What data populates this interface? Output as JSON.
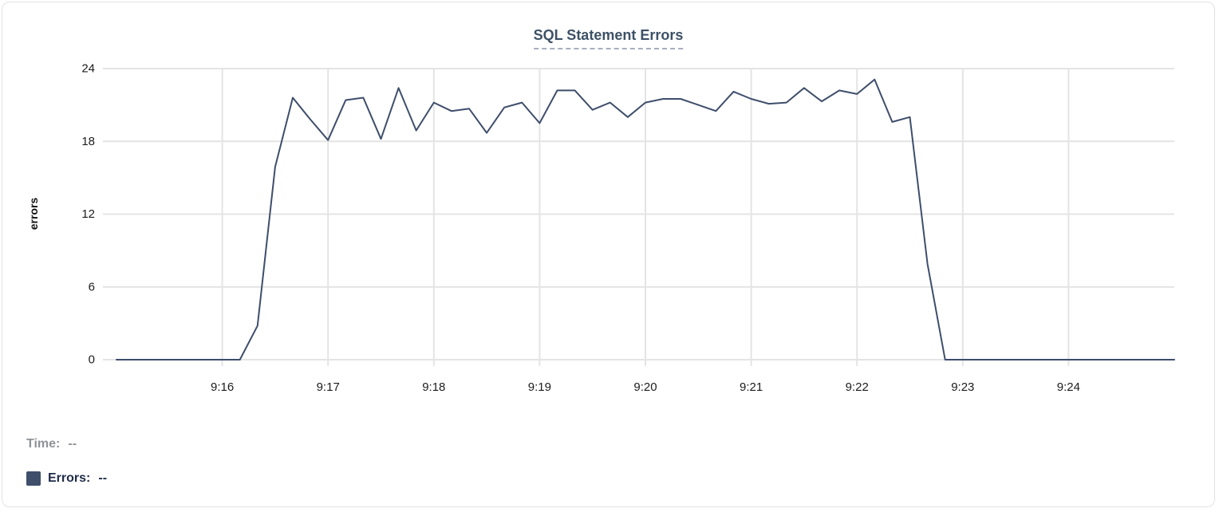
{
  "chart_data": {
    "type": "line",
    "title": "SQL Statement Errors",
    "ylabel": "errors",
    "series_name": "Errors",
    "x_start_time": "9:15:00",
    "interval_seconds": 10,
    "x_ticks": [
      "9:16",
      "9:17",
      "9:18",
      "9:19",
      "9:20",
      "9:21",
      "9:22",
      "9:23",
      "9:24"
    ],
    "y_ticks": [
      0,
      6,
      12,
      18,
      24
    ],
    "ylim": [
      0,
      24
    ],
    "grid": true,
    "legend_position": "bottom-left",
    "values": [
      0,
      0,
      0,
      0,
      0,
      0,
      0,
      0,
      2.8,
      15.9,
      21.6,
      19.8,
      18.1,
      21.4,
      21.6,
      18.2,
      22.4,
      18.9,
      21.2,
      20.5,
      20.7,
      18.7,
      20.8,
      21.2,
      19.5,
      22.2,
      22.2,
      20.6,
      21.2,
      20.0,
      21.2,
      21.5,
      21.5,
      21.0,
      20.5,
      22.1,
      21.5,
      21.1,
      21.2,
      22.4,
      21.3,
      22.2,
      21.9,
      23.1,
      19.6,
      20.0,
      7.9,
      0,
      0,
      0,
      0,
      0,
      0,
      0,
      0,
      0,
      0,
      0,
      0,
      0,
      0
    ]
  },
  "readout": {
    "time_label": "Time:",
    "time_value": "--",
    "errors_label": "Errors:",
    "errors_value": "--"
  },
  "colors": {
    "series": "#3e4e6b",
    "grid": "#e4e4e4",
    "title": "#3d5166",
    "tick_text": "#1c1c1c",
    "time_text": "#8f9397",
    "errors_text": "#1f2c49"
  }
}
